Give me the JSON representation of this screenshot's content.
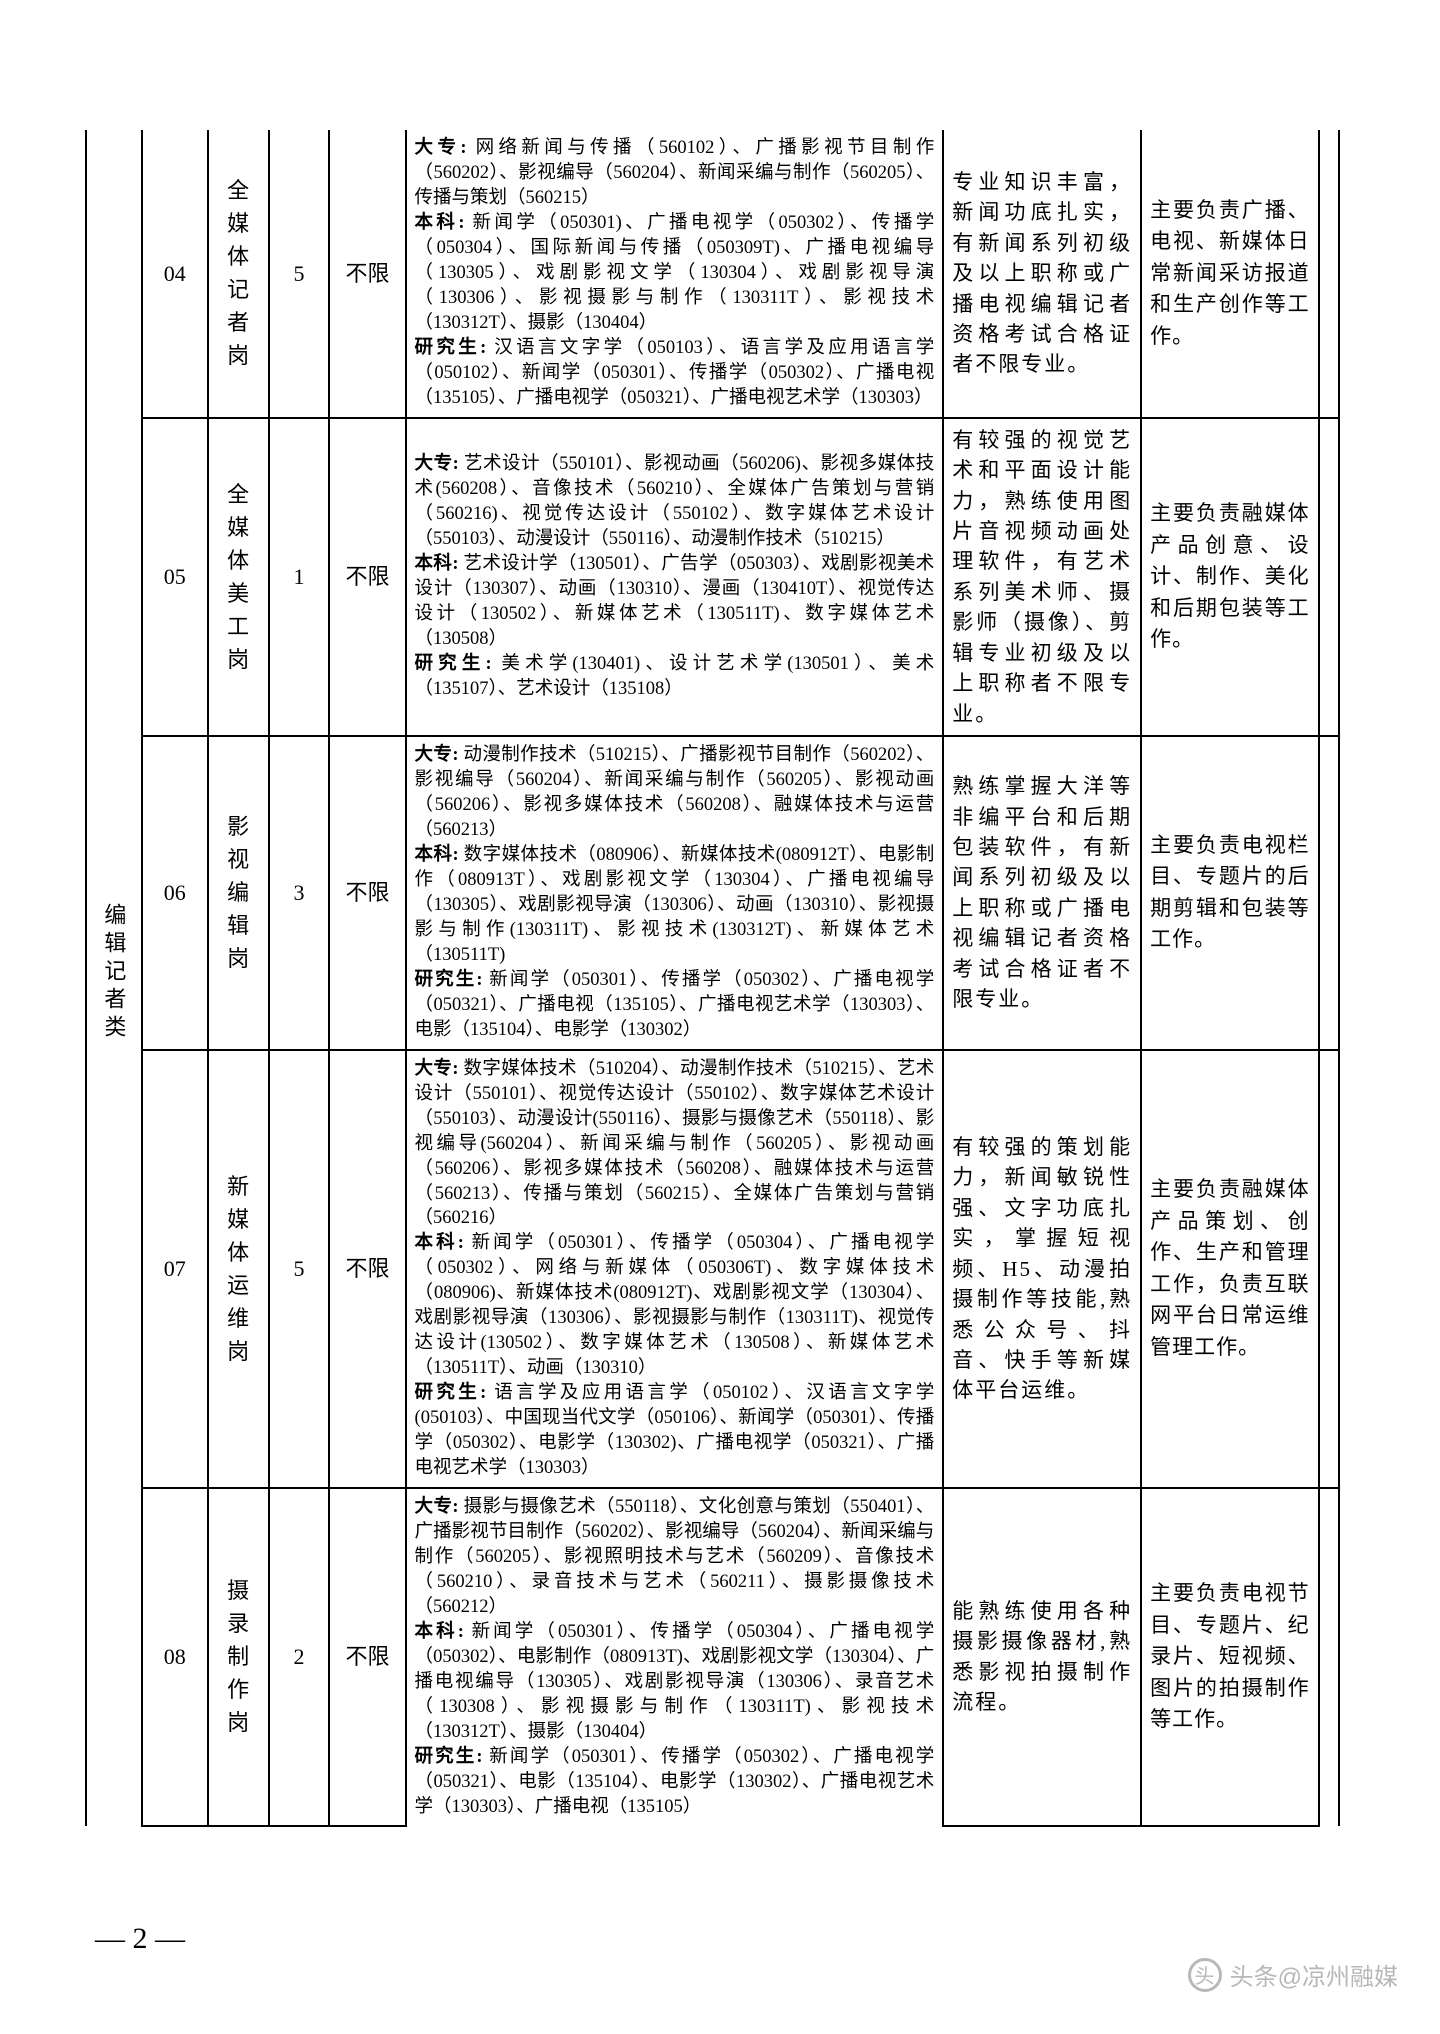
{
  "category": "编辑记者类",
  "rows": [
    {
      "code": "04",
      "position": "全媒体记者岗",
      "count": "5",
      "limit": "不限",
      "major": "<span class='bold'>大专:</span> 网络新闻与传播（560102）、广播影视节目制作（560202）、影视编导（560204）、新闻采编与制作（560205）、传播与策划（560215）<br><span class='bold'>本科:</span> 新闻学（050301)、广播电视学（050302）、传播学（050304）、国际新闻与传播（050309T)、广播电视编导（130305）、戏剧影视文学（130304）、戏剧影视导演（130306）、影视摄影与制作（130311T）、影视技术（130312T）、摄影（130404）<br><span class='bold'>研究生:</span> 汉语言文字学（050103）、语言学及应用语言学（050102）、新闻学（050301）、传播学（050302）、广播电视（135105）、广播电视学（050321）、广播电视艺术学（130303）",
      "requirement": "专业知识丰富，新闻功底扎实，有新闻系列初级及以上职称或广播电视编辑记者资格考试合格证者不限专业。",
      "duty": "主要负责广播、电视、新媒体日常新闻采访报道和生产创作等工作。"
    },
    {
      "code": "05",
      "position": "全媒体美工岗",
      "count": "1",
      "limit": "不限",
      "major": "<span class='bold'>大专:</span> 艺术设计（550101）、影视动画（560206)、影视多媒体技术(560208）、音像技术（560210）、全媒体广告策划与营销（560216)、视觉传达设计（550102）、数字媒体艺术设计（550103）、动漫设计（550116）、动漫制作技术（510215）<br><span class='bold'>本科:</span> 艺术设计学（130501）、广告学（050303）、戏剧影视美术设计（130307）、动画（130310）、漫画（130410T）、视觉传达设计（130502）、新媒体艺术（130511T)、数字媒体艺术（130508）<br><span class='bold'>研究生:</span> 美术学(130401)、设计艺术学(130501）、美术（135107）、艺术设计（135108）",
      "requirement": "有较强的视觉艺术和平面设计能力，熟练使用图片音视频动画处理软件，有艺术系列美术师、摄影师（摄像）、剪辑专业初级及以上职称者不限专业。",
      "duty": "主要负责融媒体产品创意、设计、制作、美化和后期包装等工作。"
    },
    {
      "code": "06",
      "position": "影视编辑岗",
      "count": "3",
      "limit": "不限",
      "major": "<span class='bold'>大专:</span> 动漫制作技术（510215）、广播影视节目制作（560202）、影视编导（560204）、新闻采编与制作（560205）、影视动画（560206）、影视多媒体技术（560208）、融媒体技术与运营（560213）<br><span class='bold'>本科:</span> 数字媒体技术（080906）、新媒体技术(080912T）、电影制作（080913T）、戏剧影视文学（130304）、广播电视编导（130305）、戏剧影视导演（130306）、动画（130310）、影视摄影与制作(130311T)、影视技术(130312T)、新媒体艺术（130511T)<br><span class='bold'>研究生:</span> 新闻学（050301）、传播学（050302）、广播电视学（050321）、广播电视（135105）、广播电视艺术学（130303）、电影（135104）、电影学（130302）",
      "requirement": "熟练掌握大洋等非编平台和后期包装软件，有新闻系列初级及以上职称或广播电视编辑记者资格考试合格证者不限专业。",
      "duty": "主要负责电视栏目、专题片的后期剪辑和包装等工作。"
    },
    {
      "code": "07",
      "position": "新媒体运维岗",
      "count": "5",
      "limit": "不限",
      "major": "<span class='bold'>大专:</span> 数字媒体技术（510204）、动漫制作技术（510215）、艺术设计（550101）、视觉传达设计（550102）、数字媒体艺术设计（550103）、动漫设计(550116）、摄影与摄像艺术（550118）、影视编导(560204）、新闻采编与制作（560205）、影视动画（560206）、影视多媒体技术（560208）、融媒体技术与运营（560213）、传播与策划（560215）、全媒体广告策划与营销（560216）<br><span class='bold'>本科:</span> 新闻学（050301）、传播学（050304）、广播电视学（050302）、网络与新媒体（050306T)、数字媒体技术（080906)、新媒体技术(080912T)、戏剧影视文学（130304）、戏剧影视导演（130306）、影视摄影与制作（130311T)、视觉传达设计(130502）、数字媒体艺术（130508）、新媒体艺术（130511T）、动画（130310）<br><span class='bold'>研究生:</span> 语言学及应用语言学（050102）、汉语言文字学(050103）、中国现当代文学（050106）、新闻学（050301）、传播学（050302）、电影学（130302)、广播电视学（050321）、广播电视艺术学（130303）",
      "requirement": "有较强的策划能力，新闻敏锐性强、文字功底扎实，掌握短视频、H5、动漫拍摄制作等技能,熟悉公众号、抖音、快手等新媒体平台运维。",
      "duty": "主要负责融媒体产品策划、创作、生产和管理工作，负责互联网平台日常运维管理工作。"
    },
    {
      "code": "08",
      "position": "摄录制作岗",
      "count": "2",
      "limit": "不限",
      "major": "<span class='bold'>大专:</span> 摄影与摄像艺术（550118）、文化创意与策划（550401）、广播影视节目制作（560202）、影视编导（560204）、新闻采编与制作（560205）、影视照明技术与艺术（560209）、音像技术（560210）、录音技术与艺术（560211）、摄影摄像技术（560212）<br><span class='bold'>本科:</span> 新闻学（050301）、传播学（050304）、广播电视学（050302）、电影制作（080913T)、戏剧影视文学（130304）、广播电视编导（130305）、戏剧影视导演（130306）、录音艺术（130308）、影视摄影与制作（130311T)、影视技术（130312T）、摄影（130404）<br><span class='bold'>研究生:</span> 新闻学（050301）、传播学（050302）、广播电视学（050321）、电影（135104）、电影学（130302）、广播电视艺术学（130303）、广播电视（135105）",
      "requirement": "能熟练使用各种摄影摄像器材,熟悉影视拍摄制作流程。",
      "duty": "主要负责电视节目、专题片、纪录片、短视频、图片的拍摄制作等工作。"
    }
  ],
  "pageNumber": "— 2 —",
  "watermark": "头条@凉州融媒"
}
